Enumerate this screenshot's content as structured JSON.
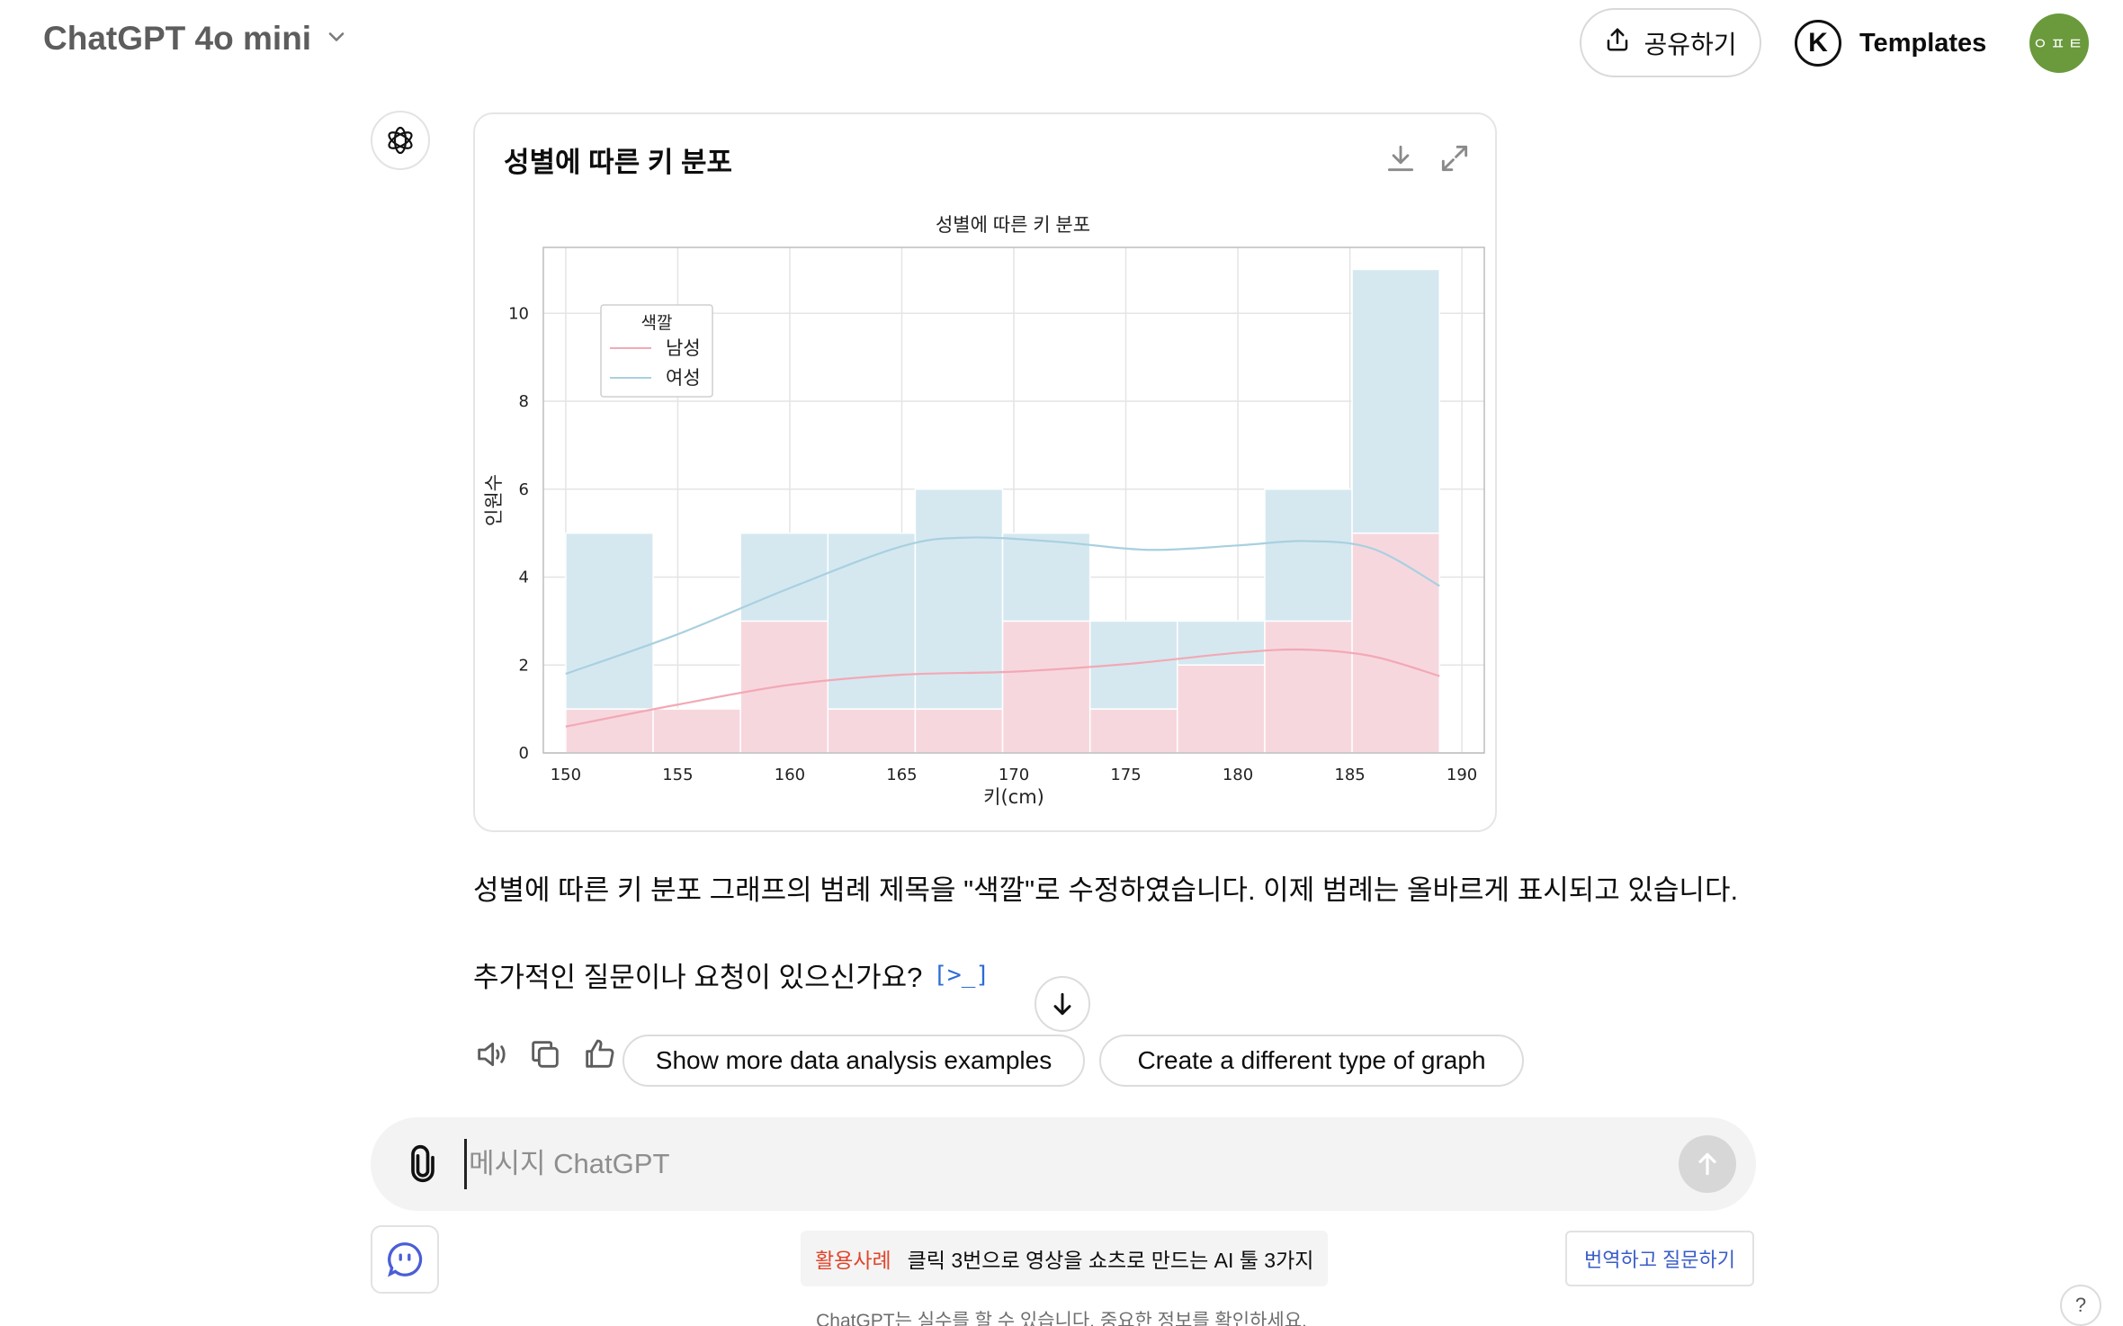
{
  "header": {
    "model_name": "ChatGPT 4o mini",
    "share_label": "공유하기",
    "templates_logo": "K",
    "templates_label": "Templates",
    "avatar_text": "ㅇㅍㅌ"
  },
  "chart_card": {
    "title": "성별에 따른 키 분포",
    "icons": [
      "download-icon",
      "expand-icon"
    ]
  },
  "chart_data": {
    "type": "bar",
    "title": "성별에 따른 키 분포",
    "xlabel": "키(cm)",
    "ylabel": "인원수",
    "x_ticks": [
      150,
      155,
      160,
      165,
      170,
      175,
      180,
      185,
      190
    ],
    "y_ticks": [
      0,
      2,
      4,
      6,
      8,
      10
    ],
    "xlim": [
      149,
      191
    ],
    "ylim": [
      0,
      11.5
    ],
    "grid": true,
    "stacked": true,
    "bin_edges": [
      150,
      153.9,
      157.8,
      161.7,
      165.6,
      169.5,
      173.4,
      177.3,
      181.2,
      185.1,
      189
    ],
    "series": [
      {
        "name": "남성",
        "color": "#f7d7de",
        "line_color": "#f2a9b5",
        "values": [
          1,
          1,
          3,
          1,
          1,
          3,
          1,
          2,
          3,
          5
        ],
        "kde": [
          [
            150,
            0.6
          ],
          [
            155,
            1.1
          ],
          [
            160,
            1.55
          ],
          [
            165,
            1.78
          ],
          [
            170,
            1.85
          ],
          [
            175,
            2.02
          ],
          [
            180,
            2.28
          ],
          [
            183,
            2.35
          ],
          [
            186,
            2.2
          ],
          [
            189,
            1.75
          ]
        ]
      },
      {
        "name": "여성",
        "color": "#d5e8f0",
        "line_color": "#a9d0e0",
        "values": [
          4,
          0,
          2,
          4,
          5,
          2,
          2,
          1,
          3,
          6
        ],
        "kde": [
          [
            150,
            1.8
          ],
          [
            155,
            2.7
          ],
          [
            160,
            3.75
          ],
          [
            165,
            4.7
          ],
          [
            168,
            4.9
          ],
          [
            172,
            4.8
          ],
          [
            176,
            4.62
          ],
          [
            180,
            4.72
          ],
          [
            183,
            4.82
          ],
          [
            186,
            4.65
          ],
          [
            189,
            3.8
          ]
        ]
      }
    ],
    "legend": {
      "title": "색깔",
      "position": "top-left"
    }
  },
  "answer": {
    "line1": "성별에 따른 키 분포 그래프의 범례 제목을 \"색깔\"로 수정하였습니다. 이제 범례는 올바르게 표시되고 있습니다.",
    "line2": "추가적인 질문이나 요청이 있으신가요?",
    "code_link": "[>_]"
  },
  "actions": {
    "icons": [
      "read-aloud-icon",
      "copy-icon",
      "thumbs-up-icon"
    ],
    "suggestions": [
      "Show more data analysis examples",
      "Create a different type of graph"
    ]
  },
  "composer": {
    "placeholder": "메시지 ChatGPT",
    "value": ""
  },
  "footer": {
    "promo_tag": "활용사례",
    "promo_text": "클릭 3번으로 영상을 쇼츠로 만드는 AI 툴 3가지",
    "translate_label": "번역하고 질문하기",
    "disclaimer": "ChatGPT는 실수를 할 수 있습니다. 중요한 정보를 확인하세요.",
    "help_label": "?"
  },
  "colors": {
    "male": "#f7d7de",
    "female": "#d5e8f0",
    "promo_tag": "#e0452b",
    "translate": "#3a5cc8",
    "avatar": "#6a9a3c"
  }
}
